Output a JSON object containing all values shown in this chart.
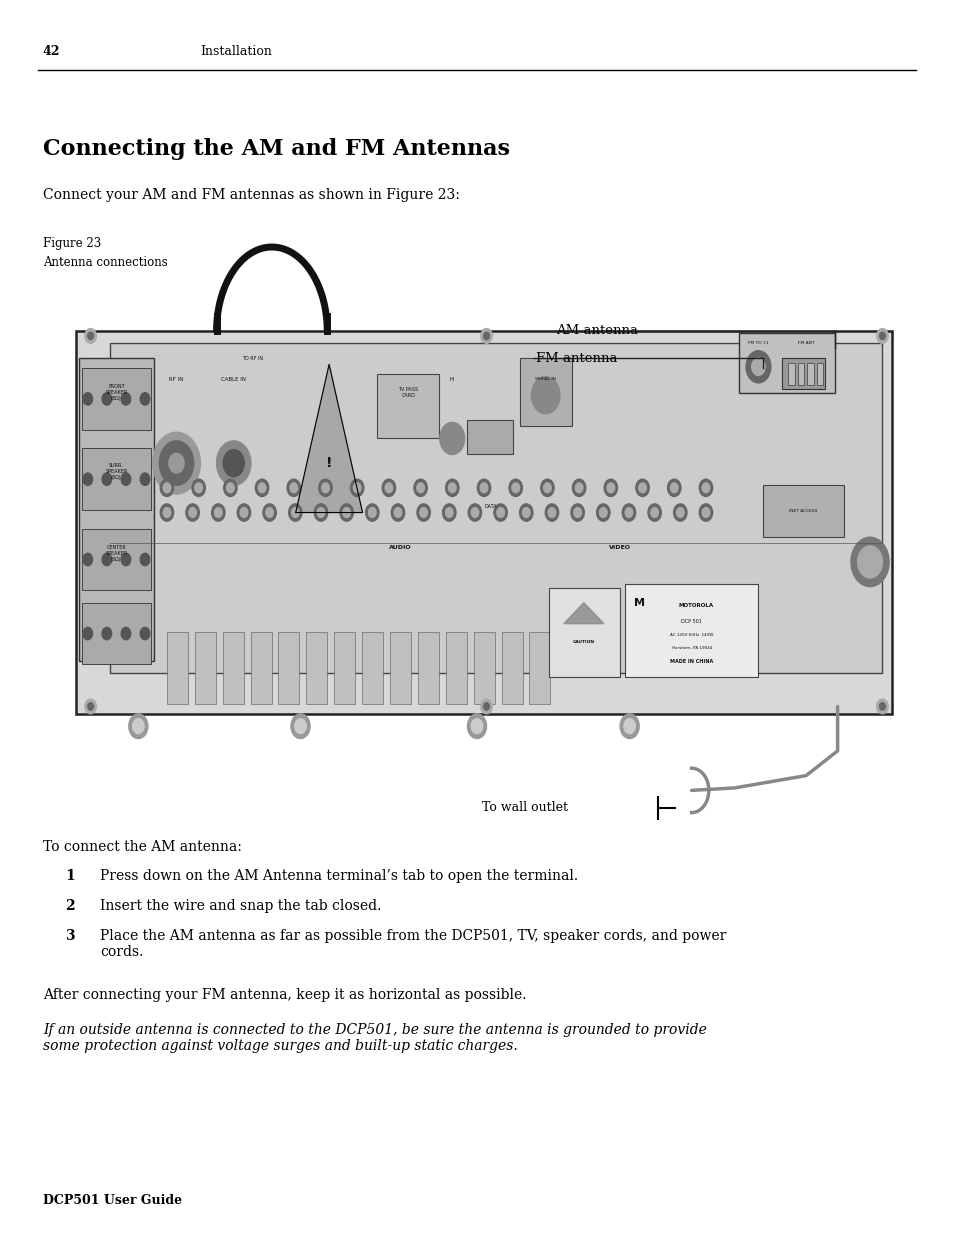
{
  "page_num": "42",
  "page_header_section": "Installation",
  "section_title": "Connecting the AM and FM Antennas",
  "intro_text": "Connect your AM and FM antennas as shown in Figure 23:",
  "figure_label": "Figure 23",
  "figure_caption": "Antenna connections",
  "body_text_1": "To connect the AM antenna:",
  "numbered_items": [
    {
      "num": "1",
      "text": "Press down on the AM Antenna terminal’s tab to open the terminal."
    },
    {
      "num": "2",
      "text": "Insert the wire and snap the tab closed."
    },
    {
      "num": "3",
      "text": "Place the AM antenna as far as possible from the DCP501, TV, speaker cords, and power\ncords."
    }
  ],
  "body_text_2": "After connecting your FM antenna, keep it as horizontal as possible.",
  "italic_text": "If an outside antenna is connected to the DCP501, be sure the antenna is grounded to provide\nsome protection against voltage surges and built-up static charges.",
  "footer_text": "DCP501 User Guide",
  "bg_color": "#ffffff",
  "text_color": "#000000",
  "line_color": "#000000"
}
